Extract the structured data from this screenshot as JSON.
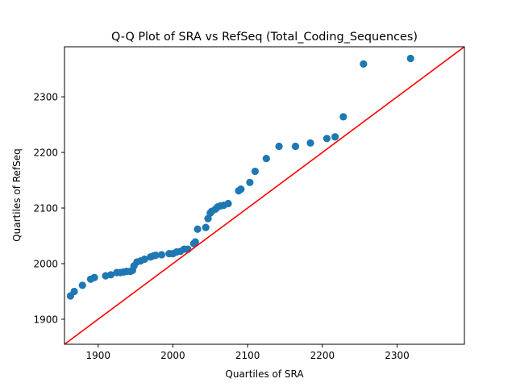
{
  "chart_data": {
    "type": "scatter",
    "title": "Q-Q Plot of SRA vs RefSeq (Total_Coding_Sequences)",
    "xlabel": "Quartiles of SRA",
    "ylabel": "Quartiles of RefSeq",
    "xlim": [
      1855,
      2390
    ],
    "ylim": [
      1855,
      2390
    ],
    "x_ticks": [
      1900,
      2000,
      2100,
      2200,
      2300
    ],
    "y_ticks": [
      1900,
      2000,
      2100,
      2200,
      2300
    ],
    "grid": false,
    "legend": "none",
    "point_color": "#1f77b4",
    "reference_line": {
      "label": "",
      "color": "#ff0000",
      "from": [
        1855,
        1855
      ],
      "to": [
        2390,
        2390
      ]
    },
    "points": [
      [
        1863,
        1942
      ],
      [
        1868,
        1950
      ],
      [
        1879,
        1961
      ],
      [
        1890,
        1972
      ],
      [
        1895,
        1975
      ],
      [
        1910,
        1978
      ],
      [
        1917,
        1980
      ],
      [
        1925,
        1984
      ],
      [
        1930,
        1984
      ],
      [
        1934,
        1985
      ],
      [
        1938,
        1986
      ],
      [
        1943,
        1986
      ],
      [
        1946,
        1988
      ],
      [
        1948,
        1996
      ],
      [
        1952,
        2003
      ],
      [
        1957,
        2005
      ],
      [
        1962,
        2008
      ],
      [
        1970,
        2012
      ],
      [
        1974,
        2014
      ],
      [
        1977,
        2015
      ],
      [
        1985,
        2016
      ],
      [
        1995,
        2018
      ],
      [
        2000,
        2018
      ],
      [
        2005,
        2021
      ],
      [
        2010,
        2022
      ],
      [
        2015,
        2026
      ],
      [
        2020,
        2026
      ],
      [
        2028,
        2036
      ],
      [
        2030,
        2039
      ],
      [
        2033,
        2062
      ],
      [
        2044,
        2065
      ],
      [
        2047,
        2081
      ],
      [
        2050,
        2091
      ],
      [
        2052,
        2094
      ],
      [
        2057,
        2098
      ],
      [
        2060,
        2102
      ],
      [
        2064,
        2104
      ],
      [
        2068,
        2105
      ],
      [
        2074,
        2108
      ],
      [
        2088,
        2131
      ],
      [
        2091,
        2134
      ],
      [
        2103,
        2146
      ],
      [
        2110,
        2166
      ],
      [
        2125,
        2189
      ],
      [
        2142,
        2211
      ],
      [
        2164,
        2211
      ],
      [
        2184,
        2217
      ],
      [
        2206,
        2225
      ],
      [
        2217,
        2228
      ],
      [
        2228,
        2264
      ],
      [
        2255,
        2359
      ],
      [
        2318,
        2369
      ]
    ]
  }
}
